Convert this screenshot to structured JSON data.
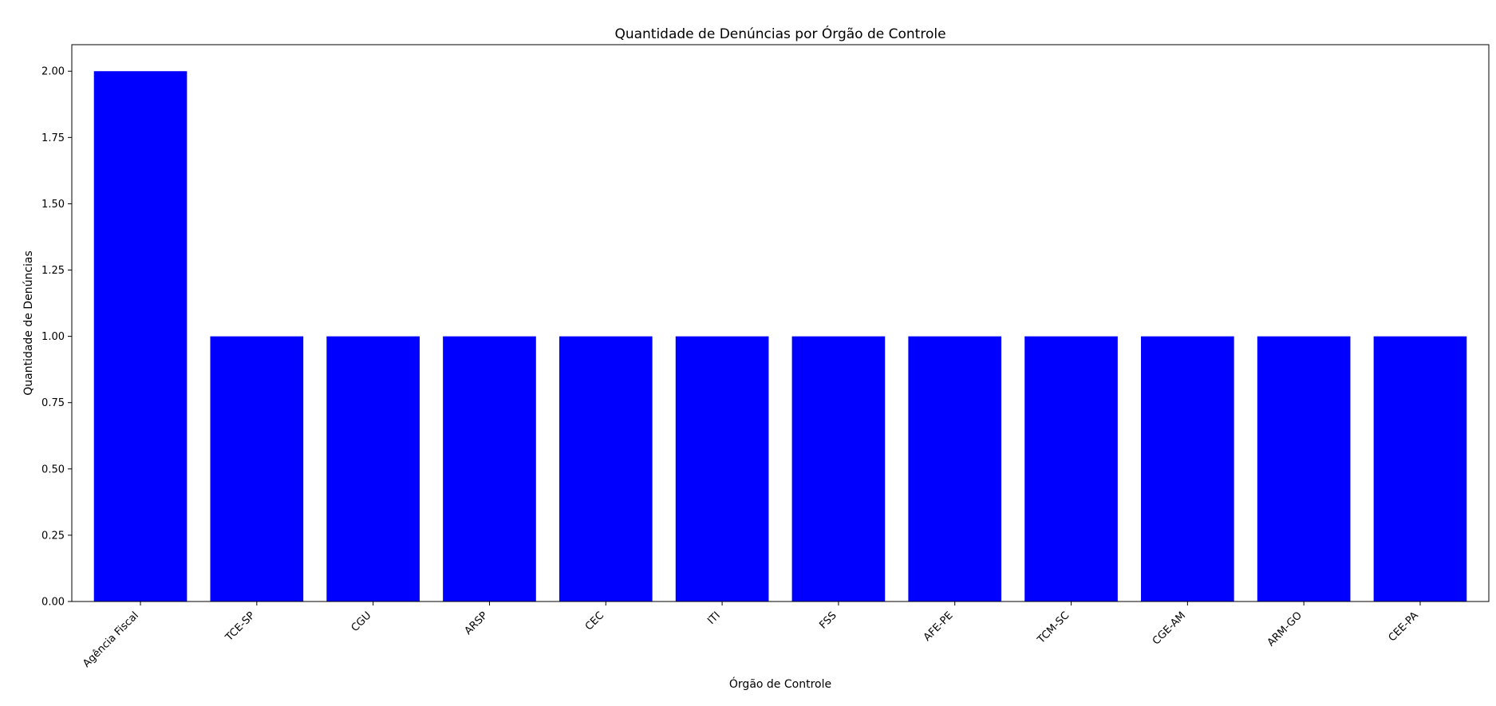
{
  "chart_data": {
    "type": "bar",
    "title": "Quantidade de Denúncias por Órgão de Controle",
    "xlabel": "Órgão de Controle",
    "ylabel": "Quantidade de Denúncias",
    "categories": [
      "Agência Fiscal",
      "TCE-SP",
      "CGU",
      "ARSP",
      "CEC",
      "ITI",
      "FSS",
      "AFE-PE",
      "TCM-SC",
      "CGE-AM",
      "ARM-GO",
      "CEE-PA"
    ],
    "values": [
      2,
      1,
      1,
      1,
      1,
      1,
      1,
      1,
      1,
      1,
      1,
      1
    ],
    "ylim": [
      0,
      2.1
    ],
    "yticks": [
      "0.00",
      "0.25",
      "0.50",
      "0.75",
      "1.00",
      "1.25",
      "1.50",
      "1.75",
      "2.00"
    ],
    "bar_color": "#0000ff",
    "grid": false,
    "legend": "none"
  }
}
